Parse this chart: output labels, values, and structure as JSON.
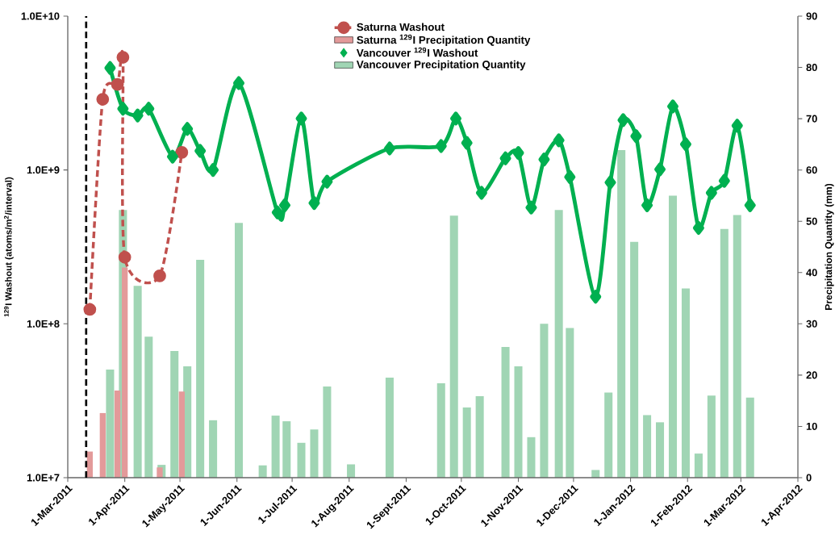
{
  "chart_data": {
    "type": "line",
    "ylabel": "$^{129}$I Washout (atoms/m$^{2}$/interval)",
    "y2label": "Precipitation Quantity (mm)",
    "xlim": [
      "2011-03-01",
      "2012-04-01"
    ],
    "xticks": [
      {
        "value": "2011-03-01",
        "label": "1-Mar-2011"
      },
      {
        "value": "2011-04-01",
        "label": "1-Apr-2011"
      },
      {
        "value": "2011-05-01",
        "label": "1-May-2011"
      },
      {
        "value": "2011-06-01",
        "label": "1-Jun-2011"
      },
      {
        "value": "2011-07-01",
        "label": "1-Jul-2011"
      },
      {
        "value": "2011-08-01",
        "label": "1-Aug-2011"
      },
      {
        "value": "2011-09-01",
        "label": "1-Sept-2011"
      },
      {
        "value": "2011-10-01",
        "label": "1-Oct-2011"
      },
      {
        "value": "2011-11-01",
        "label": "1-Nov-2011"
      },
      {
        "value": "2011-12-01",
        "label": "1-Dec-2011"
      },
      {
        "value": "2012-01-01",
        "label": "1-Jan-2012"
      },
      {
        "value": "2012-02-01",
        "label": "1-Feb-2012"
      },
      {
        "value": "2012-03-01",
        "label": "1-Mar-2012"
      },
      {
        "value": "2012-04-01",
        "label": "1-Apr-2012"
      }
    ],
    "ylim": [
      10000000.0,
      10000000000.0
    ],
    "yticks": [
      {
        "value": 10000000.0,
        "label": "1.0E+7"
      },
      {
        "value": 100000000.0,
        "label": "1.0E+8"
      },
      {
        "value": 1000000000.0,
        "label": "1.0E+9"
      },
      {
        "value": 10000000000.0,
        "label": "1.0E+10"
      }
    ],
    "y2lim": [
      0,
      90
    ],
    "y2ticks": [
      0,
      10,
      20,
      30,
      40,
      50,
      60,
      70,
      80,
      90
    ],
    "log": "y",
    "legend": "top",
    "ref_lines": [
      {
        "axis": "x",
        "value": "2011-03-11",
        "color": "#000000",
        "line_style": "dashed"
      }
    ],
    "series": [
      {
        "name": "Saturna Washout",
        "color": "#c0504d",
        "marker": "circle",
        "line_style": "dashed",
        "x": [
          "2011-03-13",
          "2011-03-20",
          "2011-03-28",
          "2011-03-31",
          "2011-04-01",
          "2011-04-20",
          "2011-05-02"
        ],
        "values": [
          124000000.0,
          2880000000.0,
          3600000000.0,
          5400000000.0,
          271000000.0,
          205000000.0,
          1300000000.0
        ]
      },
      {
        "name": "Saturna $^{129}$I Precipitation Quantity",
        "type": "bar",
        "axis": "y2",
        "color": "#e39a9a",
        "x": [
          "2011-03-13",
          "2011-03-20",
          "2011-03-28",
          "2011-04-01",
          "2011-04-20",
          "2011-05-02"
        ],
        "values": [
          5.1,
          12.6,
          17.0,
          41.0,
          2.0,
          16.8
        ]
      },
      {
        "name": "Vancouver $^{129}$I Washout",
        "color": "#00b050",
        "marker": "diamond",
        "line_style": "solid",
        "x": [
          "2011-03-24",
          "2011-03-31",
          "2011-04-08",
          "2011-04-14",
          "2011-04-27",
          "2011-05-05",
          "2011-05-12",
          "2011-05-19",
          "2011-06-02",
          "2011-06-23",
          "2011-06-27",
          "2011-07-06",
          "2011-07-13",
          "2011-07-20",
          "2011-08-23",
          "2011-09-20",
          "2011-09-28",
          "2011-10-04",
          "2011-10-12",
          "2011-10-25",
          "2011-11-01",
          "2011-11-08",
          "2011-11-15",
          "2011-11-23",
          "2011-11-29",
          "2011-12-13",
          "2011-12-21",
          "2011-12-28",
          "2012-01-04",
          "2012-01-10",
          "2012-01-17",
          "2012-01-24",
          "2012-01-31",
          "2012-02-07",
          "2012-02-14",
          "2012-02-21",
          "2012-02-28",
          "2012-03-06"
        ],
        "values": [
          4600000000.0,
          2500000000.0,
          2260000000.0,
          2500000000.0,
          1220000000.0,
          1850000000.0,
          1330000000.0,
          1000000000.0,
          3670000000.0,
          530000000.0,
          590000000.0,
          2160000000.0,
          610000000.0,
          840000000.0,
          1380000000.0,
          1430000000.0,
          2160000000.0,
          1500000000.0,
          710000000.0,
          1190000000.0,
          1290000000.0,
          570000000.0,
          1170000000.0,
          1560000000.0,
          900000000.0,
          150000000.0,
          830000000.0,
          2110000000.0,
          1660000000.0,
          590000000.0,
          1010000000.0,
          2590000000.0,
          1470000000.0,
          420000000.0,
          710000000.0,
          850000000.0,
          1940000000.0,
          590000000.0
        ]
      },
      {
        "name": "Vancouver Precipitation Quantity",
        "type": "bar",
        "axis": "y2",
        "color": "#a0d5b4",
        "x": [
          "2011-03-24",
          "2011-03-31",
          "2011-04-08",
          "2011-04-14",
          "2011-04-21",
          "2011-04-28",
          "2011-05-05",
          "2011-05-12",
          "2011-05-19",
          "2011-06-02",
          "2011-06-15",
          "2011-06-22",
          "2011-06-28",
          "2011-07-06",
          "2011-07-13",
          "2011-07-20",
          "2011-08-02",
          "2011-08-23",
          "2011-09-20",
          "2011-09-27",
          "2011-10-04",
          "2011-10-11",
          "2011-10-25",
          "2011-11-01",
          "2011-11-08",
          "2011-11-15",
          "2011-11-23",
          "2011-11-29",
          "2011-12-13",
          "2011-12-20",
          "2011-12-27",
          "2012-01-03",
          "2012-01-10",
          "2012-01-17",
          "2012-01-24",
          "2012-01-31",
          "2012-02-07",
          "2012-02-14",
          "2012-02-21",
          "2012-02-28",
          "2012-03-06"
        ],
        "values": [
          21.1,
          52.2,
          37.4,
          27.5,
          2.5,
          24.7,
          21.7,
          42.5,
          11.2,
          49.7,
          2.4,
          12.1,
          11.0,
          6.8,
          9.4,
          17.8,
          2.6,
          19.5,
          18.4,
          51.1,
          13.7,
          15.9,
          25.5,
          21.7,
          7.9,
          30.0,
          52.2,
          29.2,
          1.5,
          16.6,
          63.9,
          46.0,
          12.2,
          10.8,
          55.0,
          36.9,
          4.7,
          16.0,
          48.5,
          51.2,
          15.6
        ]
      }
    ]
  }
}
